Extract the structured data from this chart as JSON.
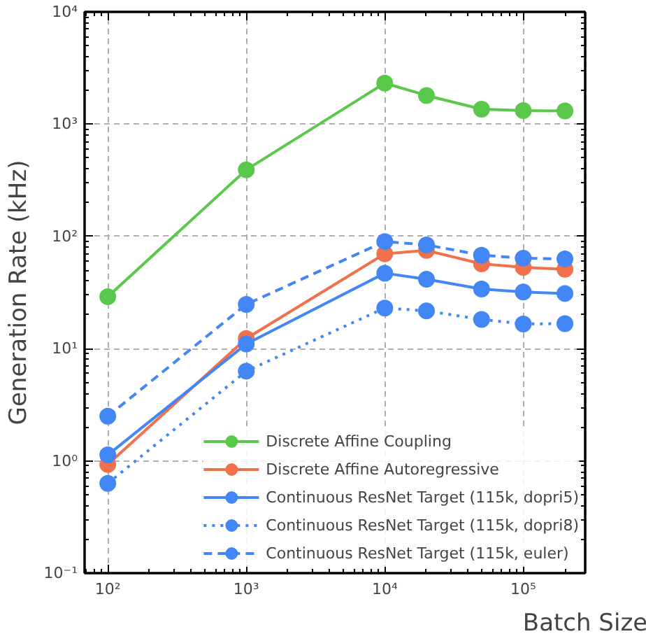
{
  "chart_data": {
    "type": "line",
    "xlabel": "Batch Size",
    "ylabel": "Generation Rate (kHz)",
    "log": "xy",
    "grid": true,
    "legend": "bottom right",
    "marker": "circle",
    "x": [
      100,
      1000,
      10000,
      20000,
      50000,
      100000,
      200000
    ],
    "xlim": [
      68,
      280000
    ],
    "ylim": [
      0.1,
      10000
    ],
    "xticks": [
      {
        "value": 100,
        "label": "10²"
      },
      {
        "value": 1000,
        "label": "10³"
      },
      {
        "value": 10000,
        "label": "10⁴"
      },
      {
        "value": 100000,
        "label": "10⁵"
      }
    ],
    "yticks": [
      {
        "value": 0.1,
        "label": "10⁻¹"
      },
      {
        "value": 1,
        "label": "10⁰"
      },
      {
        "value": 10,
        "label": "10¹"
      },
      {
        "value": 100,
        "label": "10²"
      },
      {
        "value": 1000,
        "label": "10³"
      },
      {
        "value": 10000,
        "label": "10⁴"
      }
    ],
    "series": [
      {
        "name": "Discrete Affine Coupling",
        "color": "#5ac84a",
        "line_style": "solid",
        "values": [
          29,
          392,
          2320,
          1800,
          1360,
          1320,
          1310
        ]
      },
      {
        "name": "Discrete Affine Autoregressive",
        "color": "#f0714c",
        "line_style": "solid",
        "values": [
          0.93,
          12.3,
          70,
          75,
          57,
          53,
          51
        ]
      },
      {
        "name": "Continuous ResNet Target (115k, dopri5)",
        "color": "#4287f5",
        "line_style": "solid",
        "values": [
          1.13,
          11,
          47,
          41.5,
          34,
          32,
          31
        ]
      },
      {
        "name": "Continuous ResNet Target (115k, dopri8)",
        "color": "#4287f5",
        "line_style": "dotted",
        "values": [
          0.63,
          6.3,
          23,
          21.7,
          18.2,
          16.6,
          16.7
        ]
      },
      {
        "name": "Continuous ResNet Target (115k, euler)",
        "color": "#4287f5",
        "line_style": "dashed",
        "values": [
          2.5,
          24.8,
          90,
          84,
          68,
          64,
          63
        ]
      }
    ]
  }
}
